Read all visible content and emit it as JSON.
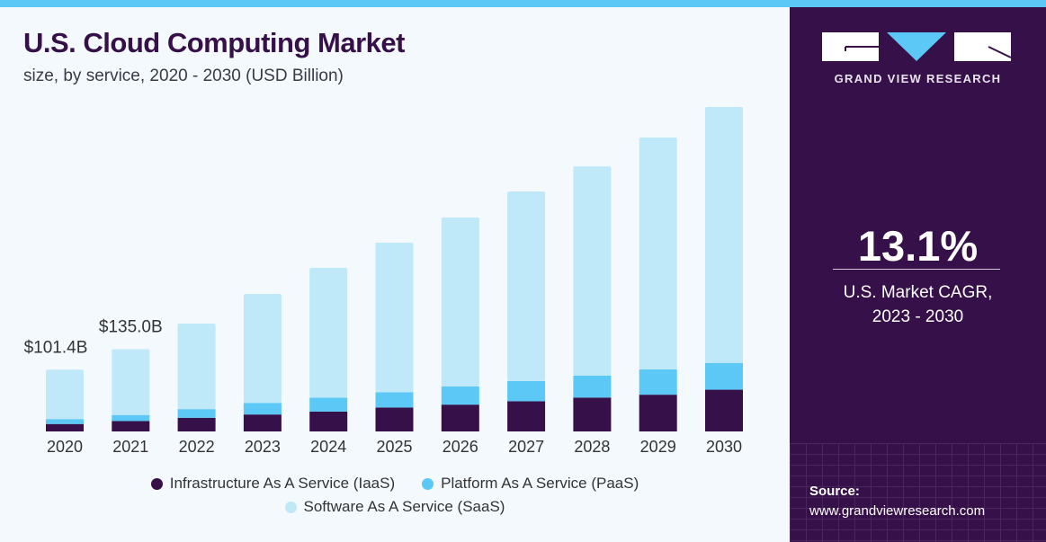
{
  "header": {
    "title": "U.S. Cloud Computing Market",
    "subtitle": "size, by service, 2020 - 2030 (USD Billion)"
  },
  "panel": {
    "brand": "GRAND VIEW RESEARCH",
    "cagr_value": "13.1%",
    "cagr_label_line1": "U.S. Market CAGR,",
    "cagr_label_line2": "2023 - 2030",
    "source_label": "Source:",
    "source_url": "www.grandviewresearch.com"
  },
  "colors": {
    "iaas": "#361048",
    "paas": "#5bc8f5",
    "saas": "#bfe8f9",
    "panel": "#361048",
    "accent": "#5bc8f5"
  },
  "chart_data": {
    "type": "bar",
    "stacked": true,
    "title": "U.S. Cloud Computing Market",
    "subtitle": "size, by service, 2020 - 2030 (USD Billion)",
    "categories": [
      "2020",
      "2021",
      "2022",
      "2023",
      "2024",
      "2025",
      "2026",
      "2027",
      "2028",
      "2029",
      "2030"
    ],
    "series": [
      {
        "name": "Infrastructure As A Service (IaaS)",
        "color": "#361048",
        "values": [
          12.2,
          17.0,
          22.4,
          27.8,
          32.5,
          39.3,
          44.0,
          49.5,
          55.6,
          60.3,
          68.5
        ]
      },
      {
        "name": "Platform As A Service (PaaS)",
        "color": "#5bc8f5",
        "values": [
          8.1,
          10.0,
          14.2,
          19.0,
          23.0,
          25.1,
          29.8,
          33.2,
          35.9,
          41.4,
          44.0
        ]
      },
      {
        "name": "Software As A Service (SaaS)",
        "color": "#bfe8f9",
        "values": [
          81.1,
          108.0,
          140.4,
          178.9,
          213.0,
          245.4,
          277.2,
          311.1,
          343.5,
          380.6,
          420.0
        ]
      }
    ],
    "annotations": [
      {
        "category": "2020",
        "label": "$101.4B"
      },
      {
        "category": "2021",
        "label": "$135.0B"
      }
    ],
    "ylim": [
      0,
      540
    ],
    "grid": false,
    "legend_position": "bottom"
  }
}
